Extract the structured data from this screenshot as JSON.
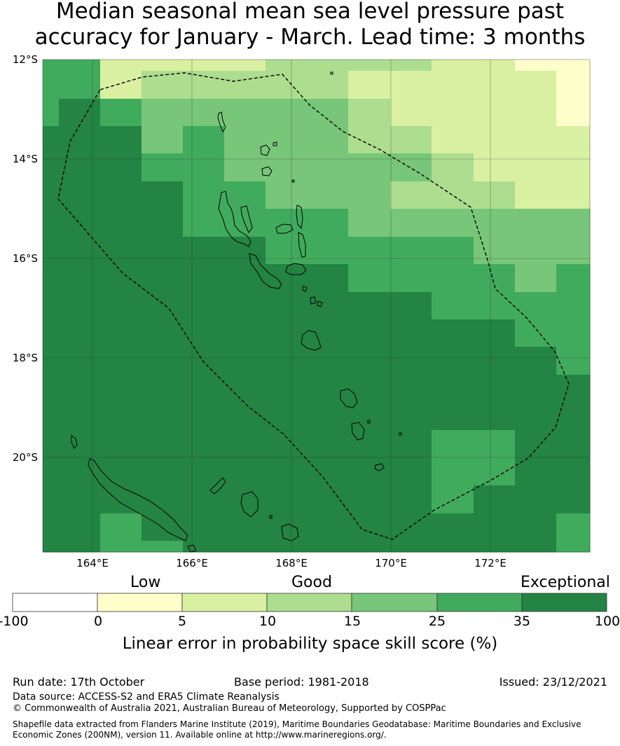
{
  "title_line1": "Median seasonal mean sea level pressure past",
  "title_line2": "accuracy for January - March. Lead time: 3 months",
  "map": {
    "lat_labels": [
      "12°S",
      "14°S",
      "16°S",
      "18°S",
      "20°S"
    ],
    "lon_labels": [
      "164°E",
      "166°E",
      "168°E",
      "170°E",
      "172°E"
    ],
    "lon_range": [
      163,
      174
    ],
    "lat_range": [
      -21.9,
      -12
    ]
  },
  "colorbar": {
    "categories": [
      "Low",
      "Good",
      "Exceptional"
    ],
    "boundaries": [
      "-100",
      "0",
      "5",
      "10",
      "15",
      "25",
      "35",
      "100"
    ],
    "colors": [
      "#ffffff",
      "#ffffcc",
      "#d9f0a3",
      "#addd8e",
      "#78c679",
      "#41ab5d",
      "#238443"
    ],
    "label": "Linear error in probability space skill score (%)"
  },
  "footer": {
    "run_date": "Run date: 17th October",
    "base_period": "Base period: 1981-2018",
    "issued": "Issued: 23/12/2021",
    "data_source": "Data source: ACCESS-S2 and ERA5 Climate Reanalysis",
    "copyright": "© Commonwealth of Australia 2021, Australian Bureau of Meteorology, Supported by COSPPac",
    "shapefile1": "Shapefile data extracted from Flanders Marine Institute (2019), Maritime Boundaries Geodatabase: Maritime Boundaries and Exclusive",
    "shapefile2": "Economic Zones (200NM), version 11. Available online at http://www.marineregions.org/."
  }
}
